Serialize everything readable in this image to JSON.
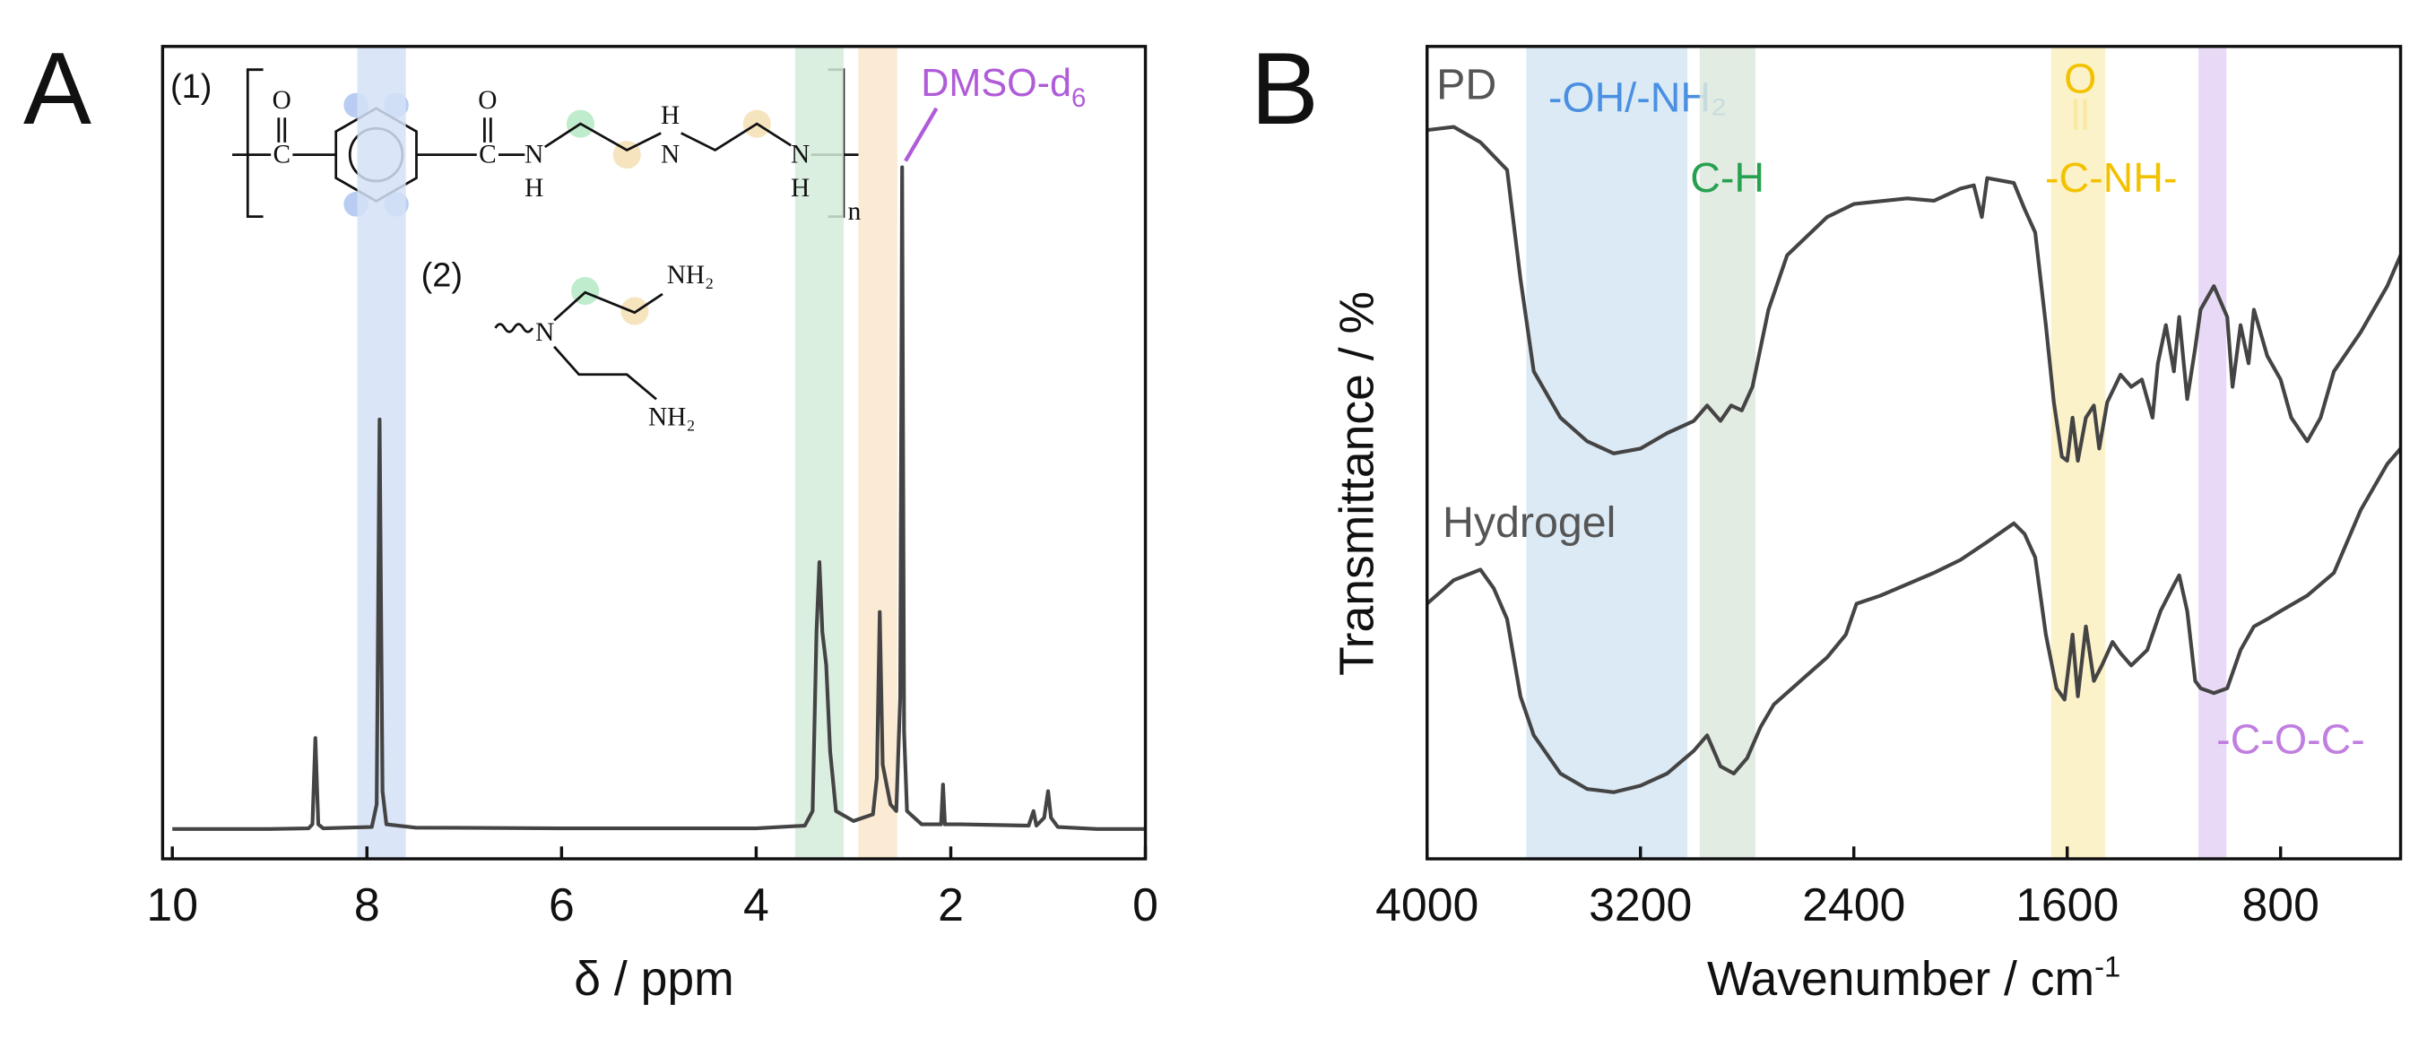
{
  "chart_data": [
    {
      "type": "line",
      "panel_label": "A",
      "xlabel": "δ / ppm",
      "xlim": [
        10.1,
        0
      ],
      "ylim": [
        -4.2,
        118.2
      ],
      "xticks": [
        10,
        8,
        6,
        4,
        2,
        0
      ],
      "annotations": [
        "(1)",
        "(2)"
      ],
      "solvent_label": "DMSO-d",
      "solvent_subscript": "6",
      "structure_labels": [
        "O",
        "C",
        "O",
        "C",
        "N",
        "H",
        "H",
        "N",
        "N",
        "H",
        "n",
        "NH₂",
        "N",
        "NH₂"
      ],
      "bands": [
        {
          "range": [
            8.1,
            7.6
          ],
          "color": "#d3e2f7"
        },
        {
          "range": [
            3.6,
            3.1
          ],
          "color": "#d5ecdc"
        },
        {
          "range": [
            2.95,
            2.55
          ],
          "color": "#fae6cc"
        }
      ],
      "series": [
        {
          "color": "#444444",
          "x": [
            10.0,
            9.0,
            8.6,
            8.56,
            8.53,
            8.5,
            8.45,
            7.95,
            7.9,
            7.87,
            7.84,
            7.8,
            7.5,
            6.0,
            4.0,
            3.5,
            3.42,
            3.38,
            3.35,
            3.32,
            3.28,
            3.24,
            3.18,
            3.0,
            2.8,
            2.76,
            2.73,
            2.7,
            2.66,
            2.62,
            2.56,
            2.52,
            2.5,
            2.48,
            2.45,
            2.3,
            2.1,
            2.08,
            2.06,
            1.9,
            1.2,
            1.15,
            1.12,
            1.04,
            1.0,
            0.97,
            0.9,
            0.5,
            0.0
          ],
          "values": [
            0.3,
            0.3,
            0.4,
            1,
            14,
            1,
            0.4,
            0.6,
            4,
            62,
            6,
            1,
            0.5,
            0.4,
            0.4,
            0.8,
            3,
            30,
            40.5,
            30,
            25,
            12,
            3,
            1.5,
            2.5,
            8,
            33,
            10,
            7,
            4,
            3,
            20,
            100,
            15,
            3,
            1,
            1,
            7,
            1,
            1,
            0.8,
            3,
            0.8,
            2,
            6,
            2,
            0.6,
            0.3,
            0.3
          ]
        }
      ]
    },
    {
      "type": "line",
      "panel_label": "B",
      "xlabel": "Wavenumber / cm",
      "xlabel_superscript": "-1",
      "ylabel": "Transmittance / %",
      "xlim": [
        4000,
        350
      ],
      "ylim": [
        0,
        100
      ],
      "xticks": [
        4000,
        3200,
        2400,
        1600,
        800
      ],
      "bands": [
        {
          "range": [
            3628,
            3024
          ],
          "color": "#d6e6f3",
          "label": "-OH/-NH₂",
          "label_color": "#4a90e2"
        },
        {
          "range": [
            2978,
            2769
          ],
          "color": "#dde9dd",
          "label": "C-H",
          "label_color": "#27a050"
        },
        {
          "range": [
            1660,
            1457
          ],
          "color": "#fcf0c0",
          "label": "-C-NH-",
          "top_label": "O",
          "label_color": "#f2c200"
        },
        {
          "range": [
            1108,
            1003
          ],
          "color": "#e4d3f4",
          "label": "-C-O-C-",
          "label_color": "#c07ee0"
        }
      ],
      "series": [
        {
          "name": "PD",
          "color": "#444444",
          "x": [
            4000,
            3900,
            3800,
            3700,
            3650,
            3600,
            3500,
            3400,
            3300,
            3200,
            3100,
            3000,
            2950,
            2900,
            2860,
            2820,
            2780,
            2720,
            2650,
            2500,
            2400,
            2200,
            2100,
            2000,
            1950,
            1920,
            1900,
            1800,
            1760,
            1720,
            1680,
            1650,
            1620,
            1600,
            1580,
            1560,
            1530,
            1500,
            1480,
            1450,
            1400,
            1360,
            1320,
            1280,
            1260,
            1230,
            1200,
            1180,
            1150,
            1120,
            1100,
            1050,
            1000,
            980,
            950,
            920,
            900,
            850,
            800,
            760,
            700,
            650,
            600,
            500,
            400,
            350
          ],
          "values": [
            89.7,
            90.1,
            88.2,
            84.8,
            71.4,
            60.0,
            54.3,
            51.4,
            49.9,
            50.5,
            52.4,
            53.9,
            55.8,
            53.9,
            55.8,
            55.2,
            58.1,
            67.6,
            74.3,
            79.0,
            80.6,
            81.3,
            81.0,
            82.5,
            82.9,
            79.0,
            83.8,
            83.2,
            80.0,
            77.1,
            65.7,
            56.2,
            49.5,
            49.0,
            54.3,
            49.0,
            54.3,
            55.8,
            50.5,
            56.2,
            59.6,
            58.1,
            59.0,
            54.3,
            61.0,
            65.7,
            60.0,
            66.7,
            56.6,
            62.9,
            67.6,
            70.5,
            66.7,
            58.1,
            65.7,
            61.0,
            67.6,
            61.9,
            59.0,
            54.3,
            51.4,
            54.3,
            60.0,
            64.8,
            70.5,
            74.3
          ]
        },
        {
          "name": "Hydrogel",
          "color": "#444444",
          "x": [
            4000,
            3900,
            3800,
            3750,
            3700,
            3650,
            3600,
            3500,
            3400,
            3300,
            3200,
            3100,
            3000,
            2950,
            2900,
            2850,
            2800,
            2750,
            2700,
            2600,
            2500,
            2430,
            2410,
            2390,
            2300,
            2100,
            2000,
            1900,
            1800,
            1760,
            1720,
            1680,
            1640,
            1610,
            1580,
            1560,
            1530,
            1500,
            1470,
            1430,
            1400,
            1360,
            1300,
            1250,
            1200,
            1180,
            1150,
            1120,
            1100,
            1050,
            1000,
            950,
            900,
            850,
            800,
            700,
            600,
            500,
            400,
            350
          ],
          "values": [
            31.4,
            34.3,
            35.6,
            33.3,
            29.5,
            20.0,
            15.2,
            10.5,
            8.6,
            8.2,
            9.0,
            10.5,
            13.3,
            15.2,
            11.4,
            10.5,
            12.4,
            16.2,
            19.0,
            21.9,
            24.8,
            27.6,
            29.5,
            31.4,
            32.4,
            35.2,
            36.8,
            39.0,
            41.3,
            40.0,
            37.1,
            27.6,
            21.0,
            19.6,
            27.6,
            20.0,
            28.6,
            21.9,
            23.8,
            26.7,
            25.3,
            23.8,
            25.7,
            30.5,
            33.7,
            34.9,
            30.5,
            21.9,
            21.0,
            20.4,
            21.0,
            25.7,
            28.6,
            29.5,
            30.5,
            32.4,
            35.2,
            42.9,
            48.6,
            50.5
          ]
        }
      ]
    }
  ]
}
